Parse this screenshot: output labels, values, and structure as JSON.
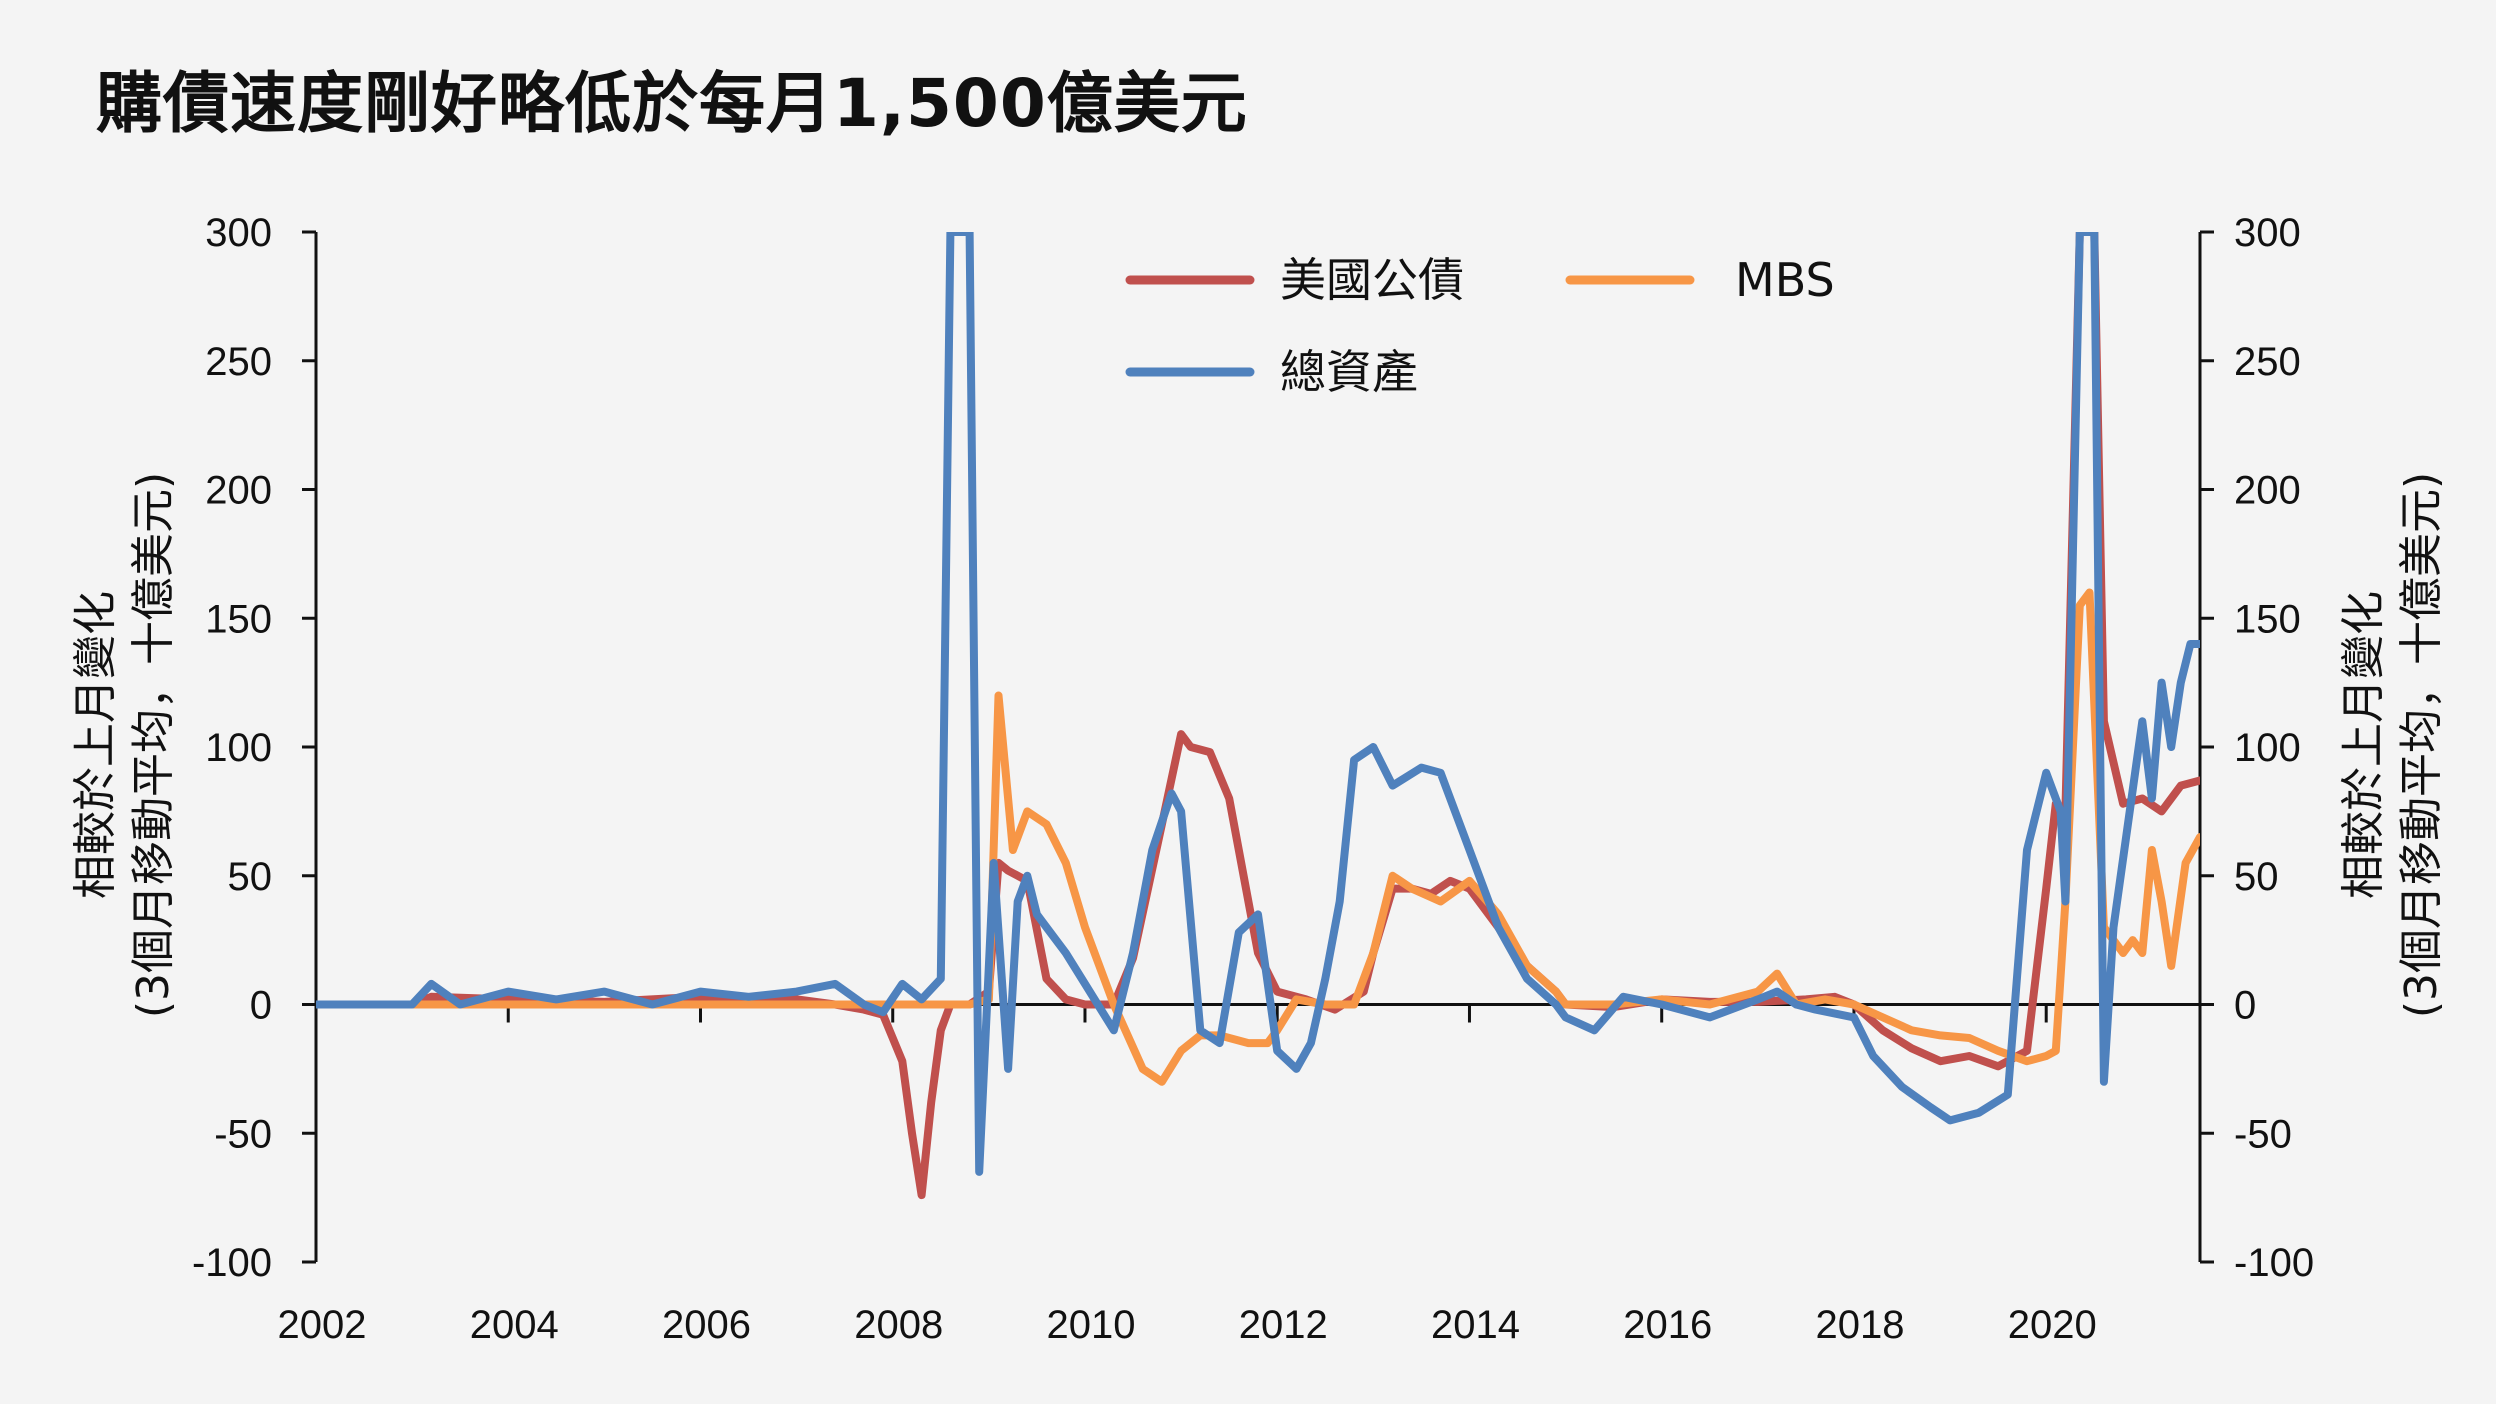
{
  "title": "購債速度剛好略低於每月1,500億美元",
  "colors": {
    "treasury": "#c0504d",
    "mbs": "#f79646",
    "total": "#4f81bd"
  },
  "chart_data": {
    "type": "line",
    "title": "購債速度剛好略低於每月1,500億美元",
    "ylabel_left": [
      "相較於上月變化",
      "(3個月移動平均，十億美元)"
    ],
    "ylabel_right": [
      "相較於上月變化",
      "(3個月移動平均，十億美元)"
    ],
    "xlim": [
      2002,
      2021.6
    ],
    "ylim": [
      -100,
      300
    ],
    "xticks": [
      "2002",
      "2004",
      "2006",
      "2008",
      "2010",
      "2012",
      "2014",
      "2016",
      "2018",
      "2020"
    ],
    "yticks_left": [
      "300",
      "250",
      "200",
      "150",
      "100",
      "50",
      "0",
      "-50",
      "-100"
    ],
    "yticks_right": [
      "300",
      "250",
      "200",
      "150",
      "100",
      "50",
      "0",
      "-50",
      "-100"
    ],
    "legend": {
      "position": "top-center"
    },
    "series": [
      {
        "name": "美國公債",
        "key": "treasury",
        "x": [
          2002,
          2003,
          2003.2,
          2004,
          2005,
          2006,
          2007,
          2007.4,
          2007.7,
          2007.9,
          2008.1,
          2008.2,
          2008.3,
          2008.4,
          2008.5,
          2008.6,
          2008.8,
          2009,
          2009.1,
          2009.2,
          2009.4,
          2009.6,
          2009.8,
          2010,
          2010.3,
          2010.5,
          2010.8,
          2011,
          2011.1,
          2011.3,
          2011.5,
          2011.6,
          2011.8,
          2012,
          2012.3,
          2012.6,
          2012.9,
          2013,
          2013.2,
          2013.4,
          2013.6,
          2013.8,
          2014,
          2014.3,
          2014.6,
          2014.9,
          2015,
          2015.5,
          2016,
          2016.5,
          2017,
          2017.5,
          2017.8,
          2018,
          2018.3,
          2018.6,
          2018.9,
          2019.2,
          2019.5,
          2019.8,
          2020,
          2020.1,
          2020.2,
          2020.35,
          2020.5,
          2020.6,
          2020.8,
          2021,
          2021.2,
          2021.4,
          2021.6
        ],
        "y": [
          0,
          0,
          3,
          2,
          1,
          3,
          2,
          0,
          -2,
          -4,
          -22,
          -50,
          -74,
          -38,
          -10,
          0,
          0,
          5,
          55,
          52,
          48,
          10,
          2,
          0,
          0,
          18,
          70,
          105,
          100,
          98,
          80,
          60,
          20,
          5,
          2,
          -2,
          5,
          20,
          45,
          45,
          43,
          48,
          45,
          30,
          15,
          5,
          0,
          -1,
          2,
          1,
          1,
          2,
          3,
          0,
          -10,
          -17,
          -22,
          -20,
          -24,
          -18,
          45,
          78,
          75,
          300,
          300,
          110,
          78,
          80,
          75,
          85,
          87
        ]
      },
      {
        "name": "MBS",
        "key": "mbs",
        "x": [
          2002,
          2008.2,
          2008.5,
          2008.8,
          2009,
          2009.1,
          2009.25,
          2009.4,
          2009.6,
          2009.8,
          2010,
          2010.3,
          2010.6,
          2010.8,
          2011,
          2011.2,
          2011.4,
          2011.7,
          2011.9,
          2012,
          2012.2,
          2012.5,
          2012.8,
          2013,
          2013.2,
          2013.4,
          2013.7,
          2014,
          2014.3,
          2014.6,
          2014.9,
          2015,
          2015.5,
          2016,
          2016.5,
          2017,
          2017.2,
          2017.4,
          2017.7,
          2018,
          2018.3,
          2018.6,
          2018.9,
          2019.2,
          2019.5,
          2019.8,
          2020,
          2020.1,
          2020.2,
          2020.35,
          2020.45,
          2020.6,
          2020.8,
          2020.9,
          2021,
          2021.1,
          2021.2,
          2021.3,
          2021.45,
          2021.6
        ],
        "y": [
          0,
          0,
          0,
          0,
          2,
          120,
          60,
          75,
          70,
          55,
          30,
          0,
          -25,
          -30,
          -18,
          -12,
          -12,
          -15,
          -15,
          -10,
          2,
          0,
          0,
          20,
          50,
          45,
          40,
          48,
          35,
          15,
          5,
          0,
          0,
          2,
          0,
          5,
          12,
          0,
          2,
          0,
          -5,
          -10,
          -12,
          -13,
          -18,
          -22,
          -20,
          -18,
          40,
          155,
          160,
          30,
          20,
          25,
          20,
          60,
          40,
          15,
          55,
          65
        ]
      },
      {
        "name": "總資產",
        "key": "total",
        "x": [
          2002,
          2003,
          2003.2,
          2003.5,
          2004,
          2004.5,
          2005,
          2005.5,
          2006,
          2006.5,
          2007,
          2007.4,
          2007.7,
          2007.9,
          2008.1,
          2008.3,
          2008.5,
          2008.6,
          2008.8,
          2008.9,
          2009.05,
          2009.2,
          2009.3,
          2009.4,
          2009.5,
          2009.6,
          2009.8,
          2010,
          2010.3,
          2010.5,
          2010.7,
          2010.9,
          2011,
          2011.2,
          2011.4,
          2011.6,
          2011.8,
          2012,
          2012.2,
          2012.35,
          2012.5,
          2012.65,
          2012.8,
          2013,
          2013.2,
          2013.5,
          2013.7,
          2014,
          2014.3,
          2014.6,
          2014.9,
          2015,
          2015.3,
          2015.6,
          2016,
          2016.5,
          2017,
          2017.2,
          2017.4,
          2017.6,
          2018,
          2018.2,
          2018.5,
          2018.8,
          2019,
          2019.3,
          2019.6,
          2019.8,
          2020,
          2020.15,
          2020.2,
          2020.35,
          2020.5,
          2020.6,
          2020.7,
          2020.85,
          2021,
          2021.1,
          2021.2,
          2021.3,
          2021.4,
          2021.5,
          2021.6
        ],
        "y": [
          0,
          0,
          8,
          0,
          5,
          2,
          5,
          0,
          5,
          3,
          5,
          8,
          0,
          -3,
          8,
          2,
          10,
          300,
          300,
          -65,
          55,
          -25,
          40,
          50,
          35,
          30,
          20,
          8,
          -10,
          20,
          60,
          82,
          75,
          -10,
          -15,
          28,
          35,
          -18,
          -25,
          -15,
          10,
          40,
          95,
          100,
          85,
          92,
          90,
          60,
          30,
          10,
          0,
          -5,
          -10,
          3,
          0,
          -5,
          2,
          5,
          0,
          -2,
          -5,
          -20,
          -32,
          -40,
          -45,
          -42,
          -35,
          60,
          90,
          75,
          40,
          300,
          300,
          -30,
          30,
          70,
          110,
          80,
          125,
          100,
          125,
          140,
          140
        ]
      }
    ]
  }
}
